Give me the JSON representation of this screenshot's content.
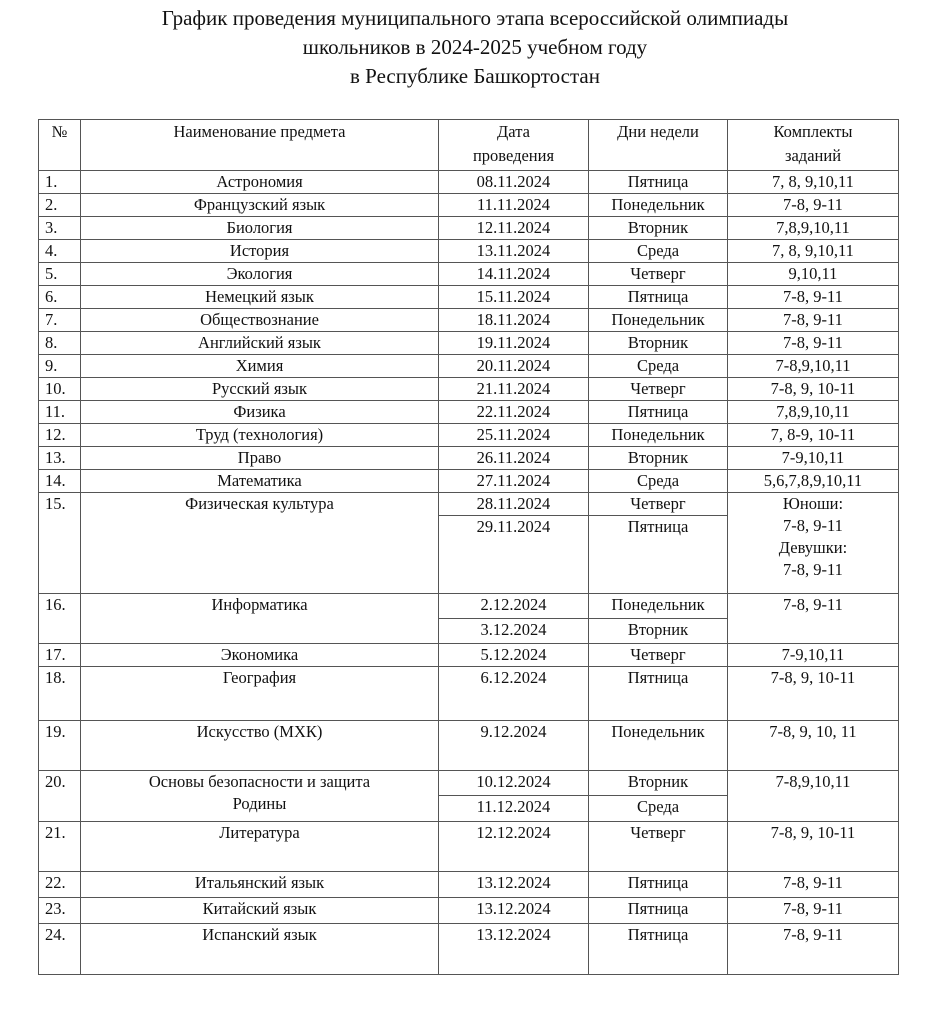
{
  "title": [
    "График проведения муниципального этапа всероссийской олимпиады",
    "школьников в 2024-2025 учебном году",
    "в Республике Башкортостан"
  ],
  "headers": {
    "num": "№",
    "subject": "Наименование предмета",
    "date": [
      "Дата",
      "проведения"
    ],
    "day": "Дни недели",
    "sets": [
      "Комплекты",
      "заданий"
    ]
  },
  "rows": [
    {
      "num": "1.",
      "subject": [
        "Астрономия"
      ],
      "dates": [
        [
          "08.11.2024",
          "Пятница"
        ]
      ],
      "sets": [
        "7, 8, 9,10,11"
      ]
    },
    {
      "num": "2.",
      "subject": [
        "Французский язык"
      ],
      "dates": [
        [
          "11.11.2024",
          "Понедельник"
        ]
      ],
      "sets": [
        "7-8, 9-11"
      ]
    },
    {
      "num": "3.",
      "subject": [
        "Биология"
      ],
      "dates": [
        [
          "12.11.2024",
          "Вторник"
        ]
      ],
      "sets": [
        "7,8,9,10,11"
      ]
    },
    {
      "num": "4.",
      "subject": [
        "История"
      ],
      "dates": [
        [
          "13.11.2024",
          "Среда"
        ]
      ],
      "sets": [
        "7, 8, 9,10,11"
      ]
    },
    {
      "num": "5.",
      "subject": [
        "Экология"
      ],
      "dates": [
        [
          "14.11.2024",
          "Четверг"
        ]
      ],
      "sets": [
        "9,10,11"
      ]
    },
    {
      "num": "6.",
      "subject": [
        "Немецкий язык"
      ],
      "dates": [
        [
          "15.11.2024",
          "Пятница"
        ]
      ],
      "sets": [
        "7-8, 9-11"
      ]
    },
    {
      "num": "7.",
      "subject": [
        "Обществознание"
      ],
      "dates": [
        [
          "18.11.2024",
          "Понедельник"
        ]
      ],
      "sets": [
        "7-8, 9-11"
      ]
    },
    {
      "num": "8.",
      "subject": [
        "Английский язык"
      ],
      "dates": [
        [
          "19.11.2024",
          "Вторник"
        ]
      ],
      "sets": [
        "7-8, 9-11"
      ]
    },
    {
      "num": "9.",
      "subject": [
        "Химия"
      ],
      "dates": [
        [
          "20.11.2024",
          "Среда"
        ]
      ],
      "sets": [
        "7-8,9,10,11"
      ]
    },
    {
      "num": "10.",
      "subject": [
        "Русский язык"
      ],
      "dates": [
        [
          "21.11.2024",
          "Четверг"
        ]
      ],
      "sets": [
        "7-8, 9, 10-11"
      ]
    },
    {
      "num": "11.",
      "subject": [
        "Физика"
      ],
      "dates": [
        [
          "22.11.2024",
          "Пятница"
        ]
      ],
      "sets": [
        "7,8,9,10,11"
      ]
    },
    {
      "num": "12.",
      "subject": [
        "Труд (технология)"
      ],
      "dates": [
        [
          "25.11.2024",
          "Понедельник"
        ]
      ],
      "sets": [
        "7, 8-9, 10-11"
      ]
    },
    {
      "num": "13.",
      "subject": [
        "Право"
      ],
      "dates": [
        [
          "26.11.2024",
          "Вторник"
        ]
      ],
      "sets": [
        "7-9,10,11"
      ]
    },
    {
      "num": "14.",
      "subject": [
        "Математика"
      ],
      "dates": [
        [
          "27.11.2024",
          "Среда"
        ]
      ],
      "sets": [
        "5,6,7,8,9,10,11"
      ]
    },
    {
      "num": "15.",
      "subject": [
        "Физическая культура"
      ],
      "dates": [
        [
          "28.11.2024",
          "Четверг"
        ],
        [
          "29.11.2024",
          "Пятница"
        ]
      ],
      "sets": [
        "Юноши:",
        "7-8, 9-11",
        "Девушки:",
        "7-8, 9-11"
      ]
    },
    {
      "num": "16.",
      "subject": [
        "Информатика"
      ],
      "dates": [
        [
          "2.12.2024",
          "Понедельник"
        ],
        [
          "3.12.2024",
          "Вторник"
        ]
      ],
      "sets": [
        "7-8, 9-11"
      ]
    },
    {
      "num": "17.",
      "subject": [
        "Экономика"
      ],
      "dates": [
        [
          "5.12.2024",
          "Четверг"
        ]
      ],
      "sets": [
        "7-9,10,11"
      ]
    },
    {
      "num": "18.",
      "subject": [
        "География"
      ],
      "dates": [
        [
          "6.12.2024",
          "Пятница"
        ]
      ],
      "sets": [
        "7-8, 9, 10-11"
      ]
    },
    {
      "num": "19.",
      "subject": [
        "Искусство (МХК)"
      ],
      "dates": [
        [
          "9.12.2024",
          "Понедельник"
        ]
      ],
      "sets": [
        "7-8, 9, 10, 11"
      ]
    },
    {
      "num": "20.",
      "subject": [
        "Основы безопасности и защита",
        "Родины"
      ],
      "dates": [
        [
          "10.12.2024",
          "Вторник"
        ],
        [
          "11.12.2024",
          "Среда"
        ]
      ],
      "sets": [
        "7-8,9,10,11"
      ]
    },
    {
      "num": "21.",
      "subject": [
        "Литература"
      ],
      "dates": [
        [
          "12.12.2024",
          "Четверг"
        ]
      ],
      "sets": [
        "7-8, 9, 10-11"
      ]
    },
    {
      "num": "22.",
      "subject": [
        "Итальянский язык"
      ],
      "dates": [
        [
          "13.12.2024",
          "Пятница"
        ]
      ],
      "sets": [
        "7-8, 9-11"
      ]
    },
    {
      "num": "23.",
      "subject": [
        "Китайский язык"
      ],
      "dates": [
        [
          "13.12.2024",
          "Пятница"
        ]
      ],
      "sets": [
        "7-8, 9-11"
      ]
    },
    {
      "num": "24.",
      "subject": [
        "Испанский язык"
      ],
      "dates": [
        [
          "13.12.2024",
          "Пятница"
        ]
      ],
      "sets": [
        "7-8, 9-11"
      ]
    }
  ]
}
